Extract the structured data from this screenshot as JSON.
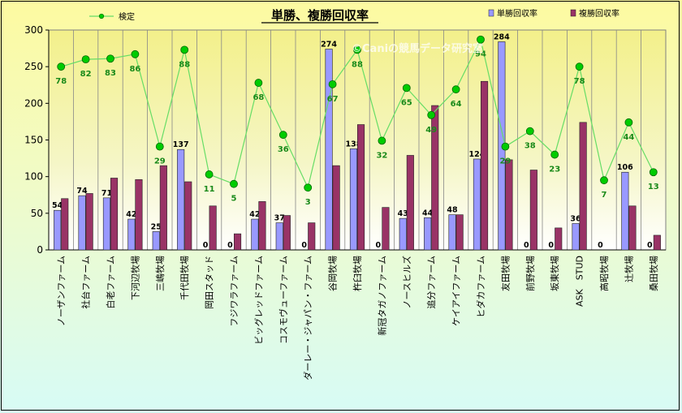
{
  "chart_data": {
    "type": "bar",
    "title": "単勝、複勝回収率",
    "watermark": "©Caniの競馬データ研究室",
    "ylim": [
      0,
      300
    ],
    "yticks": [
      0,
      50,
      100,
      150,
      200,
      250,
      300
    ],
    "grid": "vertical",
    "legend_placement": "top",
    "categories": [
      "ノーザンファーム",
      "社台ファーム",
      "白老ファーム",
      "下河辺牧場",
      "三嶋牧場",
      "千代田牧場",
      "岡田スタッド",
      "フジワラファーム",
      "ビッグレッドファーム",
      "コスモヴューファーム",
      "ダーレー・ジャパン・ファーム",
      "谷岡牧場",
      "杵臼牧場",
      "新冠タガノファーム",
      "ノースヒルズ",
      "追分ファーム",
      "ケイアイファーム",
      "ヒダカファーム",
      "友田牧場",
      "前野牧場",
      "坂東牧場",
      "ASK　STUD",
      "高昭牧場",
      "辻牧場",
      "桑田牧場"
    ],
    "series": [
      {
        "name": "単勝回収率",
        "kind": "bar",
        "color": "#9999ff",
        "values": [
          54,
          74,
          71,
          42,
          25,
          137,
          0,
          0,
          42,
          37,
          0,
          274,
          138,
          0,
          43,
          44,
          48,
          124,
          284,
          0,
          0,
          36,
          0,
          106,
          0
        ],
        "labels": [
          "54",
          "74",
          "71",
          "42",
          "25",
          "137",
          "0",
          "0",
          "42",
          "37",
          "0",
          "274",
          "138",
          "0",
          "43",
          "44",
          "48",
          "124",
          "284",
          "0",
          "0",
          "36",
          "0",
          "106",
          "0"
        ]
      },
      {
        "name": "複勝回収率",
        "kind": "bar",
        "color": "#993366",
        "values": [
          70,
          77,
          98,
          96,
          115,
          93,
          60,
          22,
          66,
          47,
          37,
          115,
          171,
          58,
          129,
          197,
          48,
          230,
          123,
          109,
          30,
          174,
          0,
          60,
          20
        ]
      },
      {
        "name": "検定",
        "kind": "line",
        "color": "#00cc00",
        "values": [
          250,
          260,
          261,
          267,
          141,
          273,
          103,
          90,
          228,
          157,
          85,
          226,
          273,
          149,
          221,
          184,
          219,
          287,
          141,
          162,
          130,
          250,
          95,
          174,
          106
        ],
        "labels": [
          "78",
          "82",
          "83",
          "86",
          "29",
          "88",
          "11",
          "5",
          "68",
          "36",
          "3",
          "67",
          "88",
          "32",
          "65",
          "49",
          "64",
          "94",
          "29",
          "38",
          "23",
          "78",
          "7",
          "44",
          "13"
        ]
      }
    ]
  }
}
